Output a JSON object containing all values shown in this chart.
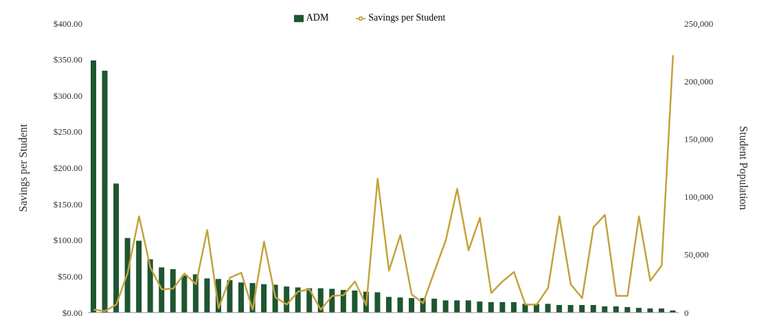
{
  "chart_data": {
    "type": "bar",
    "ylabel": "Savings per Student",
    "y2label": "Student Population",
    "legend": "top",
    "marker": "none",
    "line_style": "solid",
    "categories": [
      null,
      null,
      null,
      null,
      null,
      null,
      null,
      null,
      null,
      null,
      null,
      null,
      null,
      null,
      null,
      null,
      null,
      null,
      null,
      null,
      null,
      null,
      null,
      null,
      null,
      null,
      null,
      null,
      null,
      null,
      null,
      null,
      null,
      null,
      null,
      null,
      null,
      null,
      null,
      null,
      null,
      null,
      null,
      null,
      null,
      null,
      null,
      null,
      null,
      null,
      null,
      null
    ],
    "ylim": [
      0,
      400
    ],
    "yticks": [
      {
        "value": 0,
        "label": "$0.00"
      },
      {
        "value": 50,
        "label": "$50.00"
      },
      {
        "value": 100,
        "label": "$100.00"
      },
      {
        "value": 150,
        "label": "$150.00"
      },
      {
        "value": 200,
        "label": "$200.00"
      },
      {
        "value": 250,
        "label": "$250.00"
      },
      {
        "value": 300,
        "label": "$300.00"
      },
      {
        "value": 350,
        "label": "$350.00"
      },
      {
        "value": 400,
        "label": "$400.00"
      }
    ],
    "y2lim": [
      0,
      250000
    ],
    "y2ticks": [
      0,
      {
        "value": 50000,
        "label": "50,000"
      },
      {
        "value": 100000,
        "label": "100,000"
      },
      {
        "value": 150000,
        "label": "150,000"
      },
      {
        "value": 200000,
        "label": "200,000"
      },
      {
        "value": 250000,
        "label": "250,000"
      }
    ],
    "series": [
      {
        "name": "ADM",
        "axis": "y2",
        "color": "#1e5631",
        "values": [
          218000,
          209000,
          111500,
          64500,
          62000,
          46000,
          39000,
          37500,
          32000,
          33000,
          29500,
          29000,
          28000,
          26000,
          25500,
          24500,
          24000,
          22500,
          21700,
          21000,
          21000,
          20500,
          19500,
          19000,
          18000,
          17500,
          13500,
          13000,
          12500,
          12500,
          12000,
          10500,
          10500,
          10500,
          9500,
          9000,
          9000,
          9000,
          7500,
          7500,
          7500,
          6500,
          6500,
          6500,
          6500,
          5300,
          5300,
          4700,
          4000,
          3500,
          3500,
          1800
        ]
      },
      {
        "name": "Savings per Student",
        "type": "line",
        "color": "#c4a23a",
        "values": [
          4,
          2,
          11,
          55,
          133,
          62,
          32,
          33,
          54,
          39,
          114,
          6,
          48,
          55,
          4,
          98,
          21,
          11,
          29,
          32,
          4,
          23,
          24,
          43,
          10,
          185,
          58,
          107,
          25,
          13,
          57,
          100,
          171,
          86,
          131,
          27,
          43,
          56,
          11,
          11,
          34,
          133,
          39,
          20,
          118,
          135,
          23,
          23,
          133,
          44,
          65,
          356
        ]
      }
    ]
  }
}
